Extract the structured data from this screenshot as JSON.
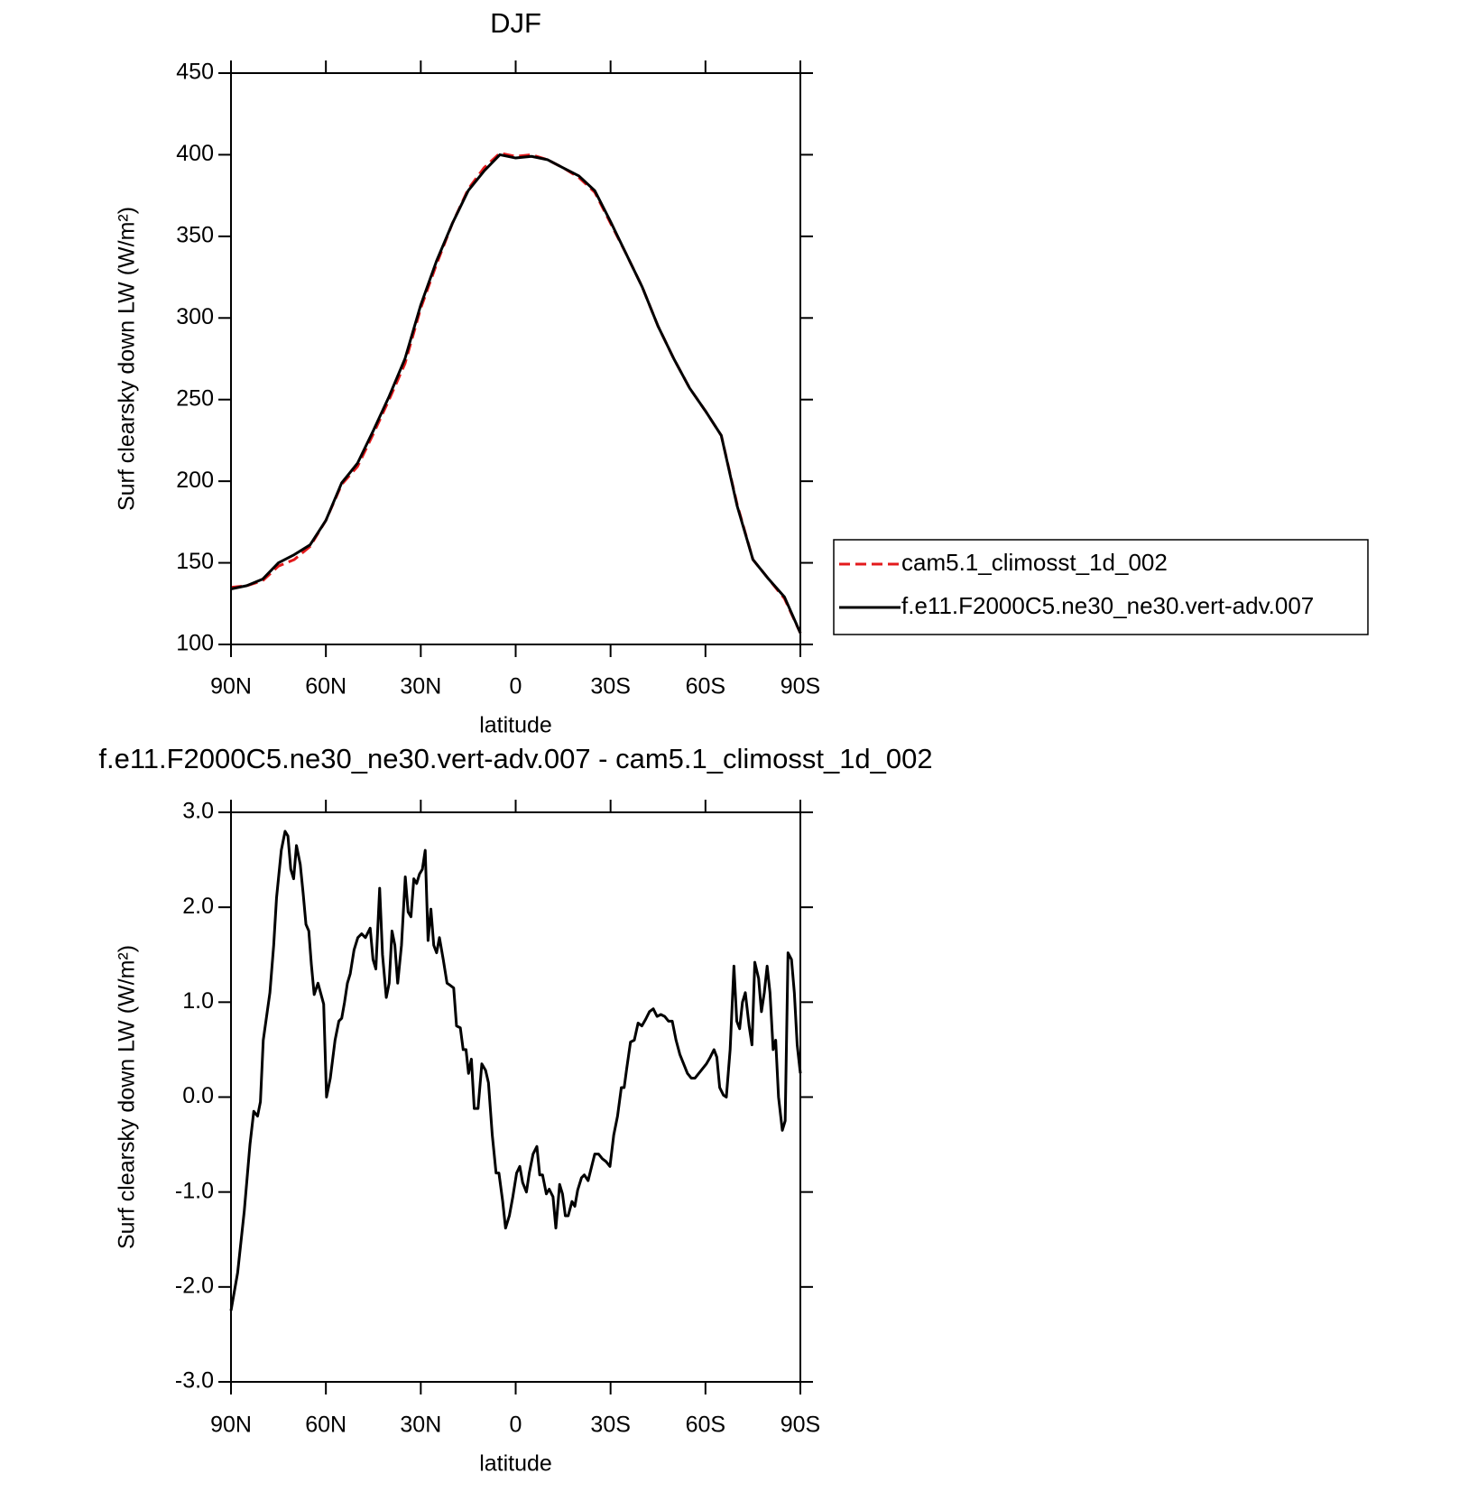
{
  "chart_data": [
    {
      "type": "line",
      "title": "DJF",
      "xlabel": "latitude",
      "ylabel": "Surf clearsky down LW (W/m²)",
      "x": [
        90,
        85,
        80,
        75,
        70,
        65,
        60,
        55,
        50,
        45,
        40,
        35,
        30,
        25,
        20,
        15,
        10,
        5,
        0,
        -5,
        -10,
        -15,
        -20,
        -25,
        -30,
        -35,
        -40,
        -45,
        -50,
        -55,
        -60,
        -65,
        -70,
        -75,
        -80,
        -85,
        -90
      ],
      "xlim": [
        90,
        -90
      ],
      "xticks": [
        {
          "value": 90,
          "label": "90N"
        },
        {
          "value": 60,
          "label": "60N"
        },
        {
          "value": 30,
          "label": "30N"
        },
        0,
        {
          "value": -30,
          "label": "30S"
        },
        {
          "value": -60,
          "label": "60S"
        },
        {
          "value": -90,
          "label": "90S"
        }
      ],
      "ylim": [
        100,
        450
      ],
      "yticks": [
        100,
        150,
        200,
        250,
        300,
        350,
        400,
        450
      ],
      "legend": "right",
      "series": [
        {
          "name": "cam5.1_climosst_1d_002",
          "color": "#e31a1c",
          "line_style": "dashed",
          "values": [
            135,
            136,
            139,
            148,
            152,
            160,
            176,
            198,
            209,
            229,
            250,
            272,
            306,
            333,
            358,
            379,
            392,
            401,
            399,
            400,
            397,
            392,
            386,
            377,
            358,
            339,
            319,
            295,
            275,
            257,
            243,
            228,
            186,
            152,
            140,
            128,
            107
          ]
        },
        {
          "name": "f.e11.F2000C5.ne30_ne30.vert-adv.007",
          "color": "#000000",
          "line_style": "solid",
          "values": [
            134,
            136,
            140,
            150,
            155,
            161,
            176,
            199,
            211,
            231,
            252,
            275,
            308,
            335,
            358,
            378,
            390,
            400,
            398,
            399,
            397,
            392,
            387,
            378,
            359,
            339,
            319,
            295,
            275,
            257,
            243,
            228,
            185,
            152,
            140,
            129,
            107
          ]
        }
      ]
    },
    {
      "type": "line",
      "title": "f.e11.F2000C5.ne30_ne30.vert-adv.007 - cam5.1_climosst_1d_002",
      "xlabel": "latitude",
      "ylabel": "Surf clearsky down LW (W/m²)",
      "x": [
        90,
        87.9,
        85.8,
        84,
        82.8,
        81.6,
        80.7,
        79.8,
        77.7,
        76.5,
        75.6,
        74.1,
        72.9,
        72,
        71.1,
        70.2,
        69.3,
        68.1,
        67.2,
        66.3,
        65.4,
        64.6,
        63.7,
        62.5,
        60.7,
        59.8,
        58.6,
        57.1,
        55.9,
        55,
        54.1,
        53.2,
        52.3,
        51.1,
        49.9,
        48.7,
        47.5,
        46,
        45.1,
        44.2,
        43,
        42.1,
        40.9,
        40,
        39.1,
        38.2,
        37.3,
        36.1,
        34.9,
        34,
        33.1,
        32.2,
        31.3,
        30.4,
        29.5,
        28.6,
        27.7,
        26.8,
        25.9,
        25,
        24.1,
        22.9,
        21.7,
        20.8,
        19.6,
        18.7,
        17.5,
        16.6,
        15.7,
        14.9,
        14,
        13.1,
        11.9,
        10.7,
        9.5,
        8.6,
        7.4,
        6.2,
        5.3,
        4.1,
        3.2,
        2,
        0.9,
        -0.3,
        -1.3,
        -2.2,
        -3.4,
        -4.3,
        -5.5,
        -6.7,
        -7.6,
        -8.5,
        -9.7,
        -10.6,
        -11.8,
        -12.7,
        -13.9,
        -14.8,
        -15.7,
        -16.6,
        -17.8,
        -18.7,
        -19.6,
        -20.8,
        -21.7,
        -22.9,
        -24.1,
        -25,
        -26.2,
        -27.4,
        -28.6,
        -29.8,
        -31,
        -32.2,
        -33.4,
        -34.3,
        -35.1,
        -36.3,
        -37.5,
        -38.7,
        -39.9,
        -41.1,
        -42.3,
        -43.5,
        -44.7,
        -45.9,
        -47.1,
        -48.3,
        -49.5,
        -50.7,
        -51.9,
        -53.1,
        -54.3,
        -55.5,
        -56.7,
        -57.9,
        -59.1,
        -60.3,
        -61.5,
        -62.7,
        -63.6,
        -64.5,
        -65.7,
        -66.6,
        -67.8,
        -69,
        -69.9,
        -70.8,
        -71.7,
        -72.6,
        -73.8,
        -74.7,
        -75.6,
        -76.8,
        -77.7,
        -78.6,
        -79.5,
        -80.4,
        -81.4,
        -82.2,
        -83.1,
        -84.3,
        -85.2,
        -86.1,
        -87.2,
        -88.1,
        -89,
        -90
      ],
      "xlim": [
        90,
        -90
      ],
      "xticks": [
        {
          "value": 90,
          "label": "90N"
        },
        {
          "value": 60,
          "label": "60N"
        },
        {
          "value": 30,
          "label": "30N"
        },
        0,
        {
          "value": -30,
          "label": "30S"
        },
        {
          "value": -60,
          "label": "60S"
        },
        {
          "value": -90,
          "label": "90S"
        }
      ],
      "ylim": [
        -3,
        3
      ],
      "yticks": [
        {
          "value": -3,
          "label": "-3.0"
        },
        {
          "value": -2,
          "label": "-2.0"
        },
        {
          "value": -1,
          "label": "-1.0"
        },
        {
          "value": 0,
          "label": "0.0"
        },
        {
          "value": 1,
          "label": "1.0"
        },
        {
          "value": 2,
          "label": "2.0"
        },
        {
          "value": 3,
          "label": "3.0"
        }
      ],
      "series": [
        {
          "color": "#000000",
          "line_style": "solid",
          "values": [
            -2.25,
            -1.85,
            -1.2,
            -0.5,
            -0.15,
            -0.2,
            -0.05,
            0.6,
            1.1,
            1.6,
            2.1,
            2.6,
            2.8,
            2.75,
            2.4,
            2.3,
            2.65,
            2.45,
            2.15,
            1.82,
            1.75,
            1.4,
            1.08,
            1.2,
            0.98,
            0,
            0.2,
            0.6,
            0.8,
            0.83,
            1,
            1.2,
            1.3,
            1.55,
            1.68,
            1.72,
            1.68,
            1.78,
            1.45,
            1.35,
            2.2,
            1.5,
            1.05,
            1.2,
            1.75,
            1.6,
            1.2,
            1.6,
            2.32,
            1.95,
            1.9,
            2.3,
            2.25,
            2.35,
            2.4,
            2.6,
            1.65,
            1.98,
            1.6,
            1.52,
            1.68,
            1.45,
            1.2,
            1.18,
            1.15,
            0.75,
            0.73,
            0.5,
            0.5,
            0.25,
            0.4,
            -0.12,
            -0.12,
            0.35,
            0.28,
            0.15,
            -0.4,
            -0.8,
            -0.8,
            -1.1,
            -1.38,
            -1.25,
            -1.05,
            -0.8,
            -0.73,
            -0.9,
            -1,
            -0.8,
            -0.6,
            -0.52,
            -0.82,
            -0.82,
            -1.02,
            -0.97,
            -1.05,
            -1.38,
            -0.92,
            -1.02,
            -1.25,
            -1.25,
            -1.1,
            -1.15,
            -0.98,
            -0.85,
            -0.82,
            -0.88,
            -0.72,
            -0.6,
            -0.6,
            -0.65,
            -0.68,
            -0.73,
            -0.4,
            -0.2,
            0.1,
            0.1,
            0.3,
            0.58,
            0.6,
            0.78,
            0.75,
            0.82,
            0.9,
            0.93,
            0.85,
            0.87,
            0.85,
            0.8,
            0.8,
            0.6,
            0.45,
            0.35,
            0.25,
            0.2,
            0.2,
            0.25,
            0.3,
            0.35,
            0.42,
            0.5,
            0.42,
            0.1,
            0.02,
            0,
            0.5,
            1.38,
            0.8,
            0.72,
            1,
            1.1,
            0.75,
            0.55,
            1.42,
            1.25,
            0.9,
            1.1,
            1.38,
            1.1,
            0.5,
            0.6,
            0,
            -0.35,
            -0.25,
            1.52,
            1.45,
            1.1,
            0.55,
            0.25
          ]
        }
      ]
    }
  ]
}
